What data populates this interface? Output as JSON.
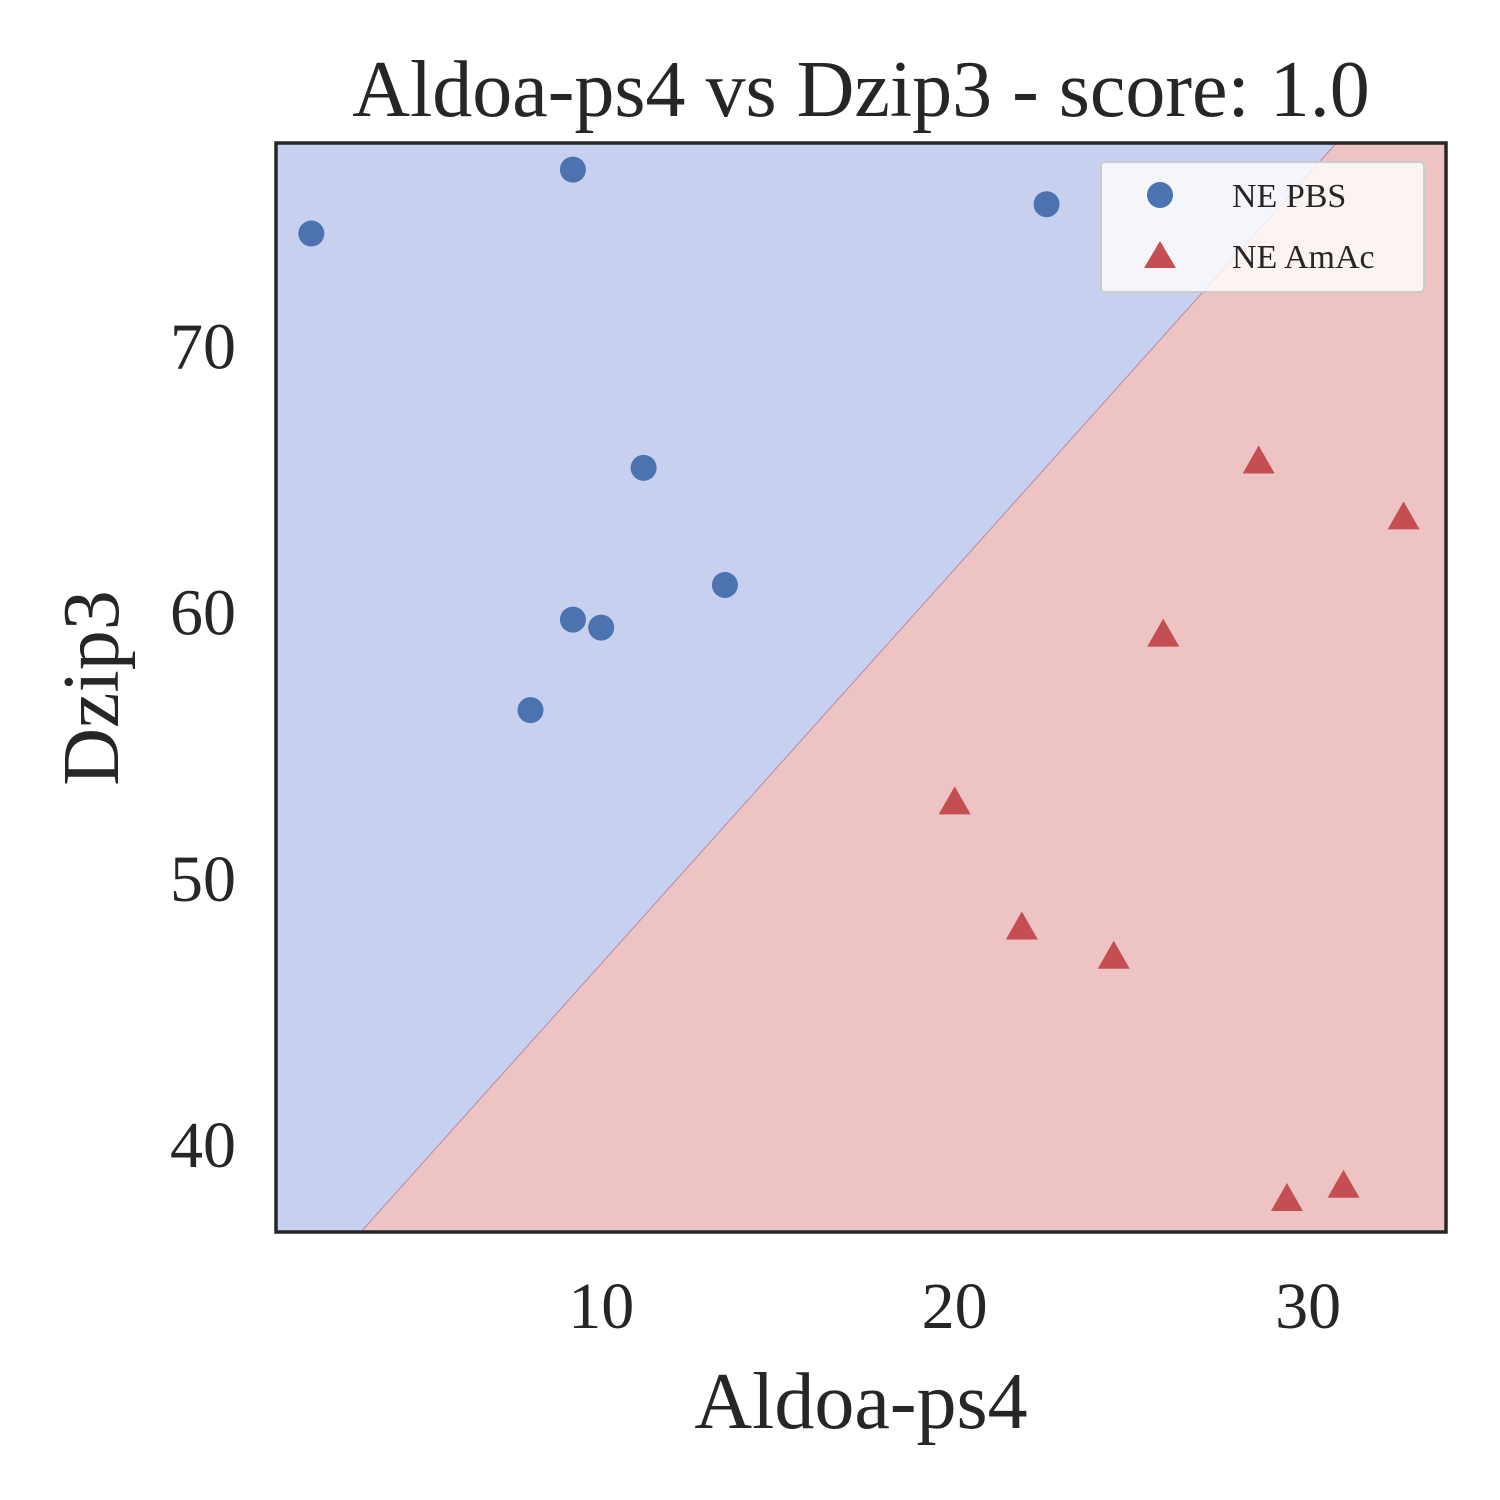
{
  "chart_data": {
    "type": "scatter",
    "title": "Aldoa-ps4 vs Dzip3 - score: 1.0",
    "xlabel": "Aldoa-ps4",
    "ylabel": "Dzip3",
    "xlim": [
      0.8,
      33.9
    ],
    "ylim": [
      36.7,
      77.6
    ],
    "xticks": [
      10,
      20,
      30
    ],
    "yticks": [
      40,
      50,
      60,
      70
    ],
    "grid": false,
    "legend_position": "top-right",
    "decision_boundary": {
      "line": [
        [
          3.2,
          36.7
        ],
        [
          30.8,
          77.6
        ]
      ],
      "upper_left_class": "NE PBS",
      "lower_right_class": "NE AmAc",
      "upper_left_color": "#c8d0f0",
      "lower_right_color": "#edc4c3"
    },
    "series": [
      {
        "name": "NE PBS",
        "marker": "circle",
        "color": "#4c72b0",
        "points": [
          [
            1.8,
            74.2
          ],
          [
            9.2,
            76.6
          ],
          [
            22.6,
            75.3
          ],
          [
            11.2,
            65.4
          ],
          [
            13.5,
            61.0
          ],
          [
            9.2,
            59.7
          ],
          [
            10.0,
            59.4
          ],
          [
            8.0,
            56.3
          ]
        ]
      },
      {
        "name": "NE AmAc",
        "marker": "triangle",
        "color": "#c44e52",
        "points": [
          [
            28.6,
            65.6
          ],
          [
            32.7,
            63.5
          ],
          [
            25.9,
            59.1
          ],
          [
            20.0,
            52.8
          ],
          [
            21.9,
            48.1
          ],
          [
            24.5,
            47.0
          ],
          [
            29.4,
            37.9
          ],
          [
            31.0,
            38.4
          ]
        ]
      }
    ]
  }
}
